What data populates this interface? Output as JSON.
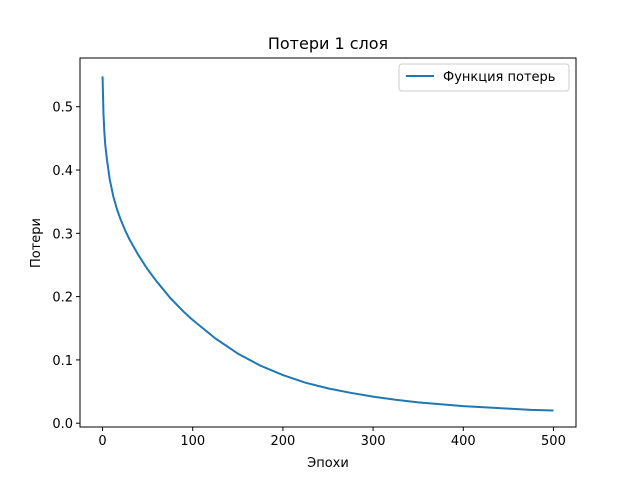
{
  "chart_data": {
    "type": "line",
    "title": "Потери 1 слоя",
    "xlabel": "Эпохи",
    "ylabel": "Потери",
    "xlim": [
      -25,
      525
    ],
    "ylim": [
      -0.006,
      0.577
    ],
    "x_ticks": [
      0,
      100,
      200,
      300,
      400,
      500
    ],
    "y_ticks": [
      0.0,
      0.1,
      0.2,
      0.3,
      0.4,
      0.5
    ],
    "x_tick_labels": [
      "0",
      "100",
      "200",
      "300",
      "400",
      "500"
    ],
    "y_tick_labels": [
      "0.0",
      "0.1",
      "0.2",
      "0.3",
      "0.4",
      "0.5"
    ],
    "grid": false,
    "legend_position": "top-right",
    "series": [
      {
        "name": "Функция потерь",
        "color": "#1f77b4",
        "x": [
          0,
          1,
          2,
          3,
          5,
          8,
          12,
          16,
          20,
          25,
          30,
          40,
          50,
          60,
          75,
          90,
          100,
          125,
          150,
          175,
          200,
          225,
          250,
          275,
          300,
          325,
          350,
          375,
          400,
          425,
          450,
          475,
          500
        ],
        "y": [
          0.548,
          0.49,
          0.46,
          0.44,
          0.415,
          0.385,
          0.358,
          0.338,
          0.322,
          0.305,
          0.29,
          0.265,
          0.243,
          0.224,
          0.198,
          0.176,
          0.163,
          0.134,
          0.11,
          0.091,
          0.076,
          0.064,
          0.055,
          0.048,
          0.042,
          0.037,
          0.033,
          0.03,
          0.027,
          0.025,
          0.023,
          0.021,
          0.02
        ]
      }
    ]
  }
}
